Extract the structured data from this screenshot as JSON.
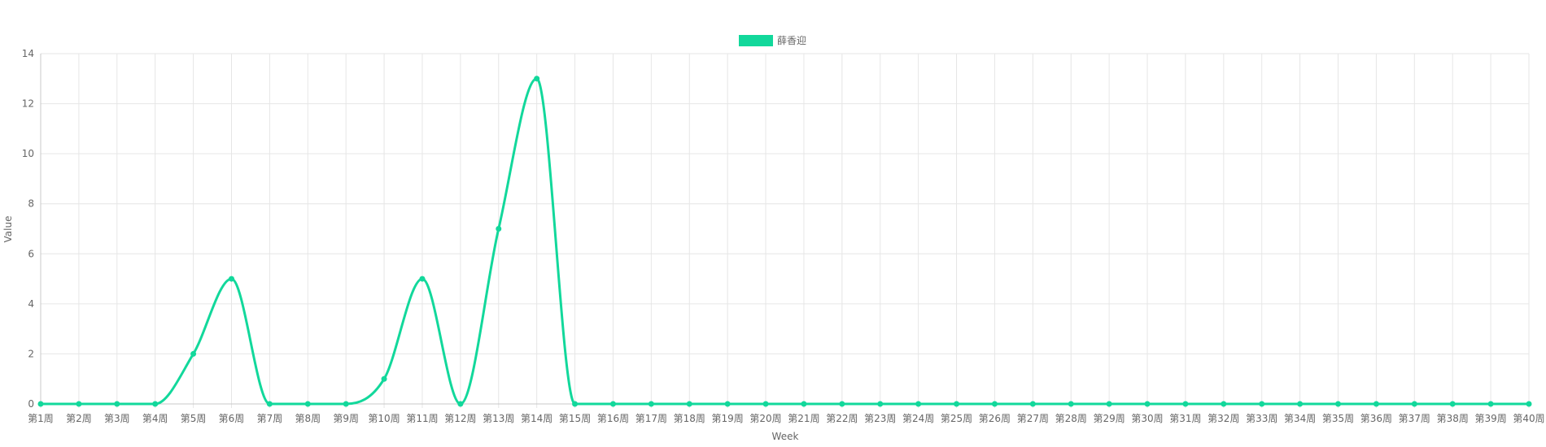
{
  "chart_data": {
    "type": "line",
    "xlabel": "Week",
    "ylabel": "Value",
    "ylim": [
      0,
      14
    ],
    "yticks": [
      0,
      2,
      4,
      6,
      8,
      10,
      12,
      14
    ],
    "grid": true,
    "legend_position": "top-center",
    "categories": [
      "第1周",
      "第2周",
      "第3周",
      "第4周",
      "第5周",
      "第6周",
      "第7周",
      "第8周",
      "第9周",
      "第10周",
      "第11周",
      "第12周",
      "第13周",
      "第14周",
      "第15周",
      "第16周",
      "第17周",
      "第18周",
      "第19周",
      "第20周",
      "第21周",
      "第22周",
      "第23周",
      "第24周",
      "第25周",
      "第26周",
      "第27周",
      "第28周",
      "第29周",
      "第30周",
      "第31周",
      "第32周",
      "第33周",
      "第34周",
      "第35周",
      "第36周",
      "第37周",
      "第38周",
      "第39周",
      "第40周"
    ],
    "series": [
      {
        "name": "薛香迎",
        "color": "#12d89b",
        "values": [
          0,
          0,
          0,
          0,
          2,
          5,
          0,
          0,
          0,
          1,
          5,
          0,
          7,
          13,
          0,
          0,
          0,
          0,
          0,
          0,
          0,
          0,
          0,
          0,
          0,
          0,
          0,
          0,
          0,
          0,
          0,
          0,
          0,
          0,
          0,
          0,
          0,
          0,
          0,
          0
        ]
      }
    ]
  }
}
